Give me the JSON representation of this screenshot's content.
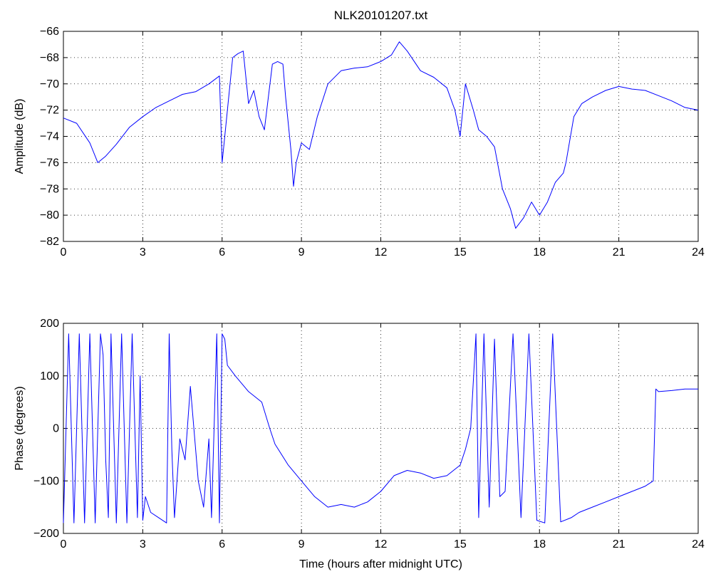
{
  "chart_data": [
    {
      "type": "line",
      "title": "NLK20101207.txt",
      "xlabel": "",
      "ylabel": "Amplitude (dB)",
      "xlim": [
        0,
        24
      ],
      "ylim": [
        -82,
        -66
      ],
      "xticks": [
        "0",
        "3",
        "6",
        "9",
        "12",
        "15",
        "18",
        "21",
        "24"
      ],
      "yticks": [
        "-66",
        "-68",
        "-70",
        "-72",
        "-74",
        "-76",
        "-78",
        "-80",
        "-82"
      ],
      "grid": true,
      "color": "#0000ff",
      "series": [
        {
          "x": [
            0,
            0.5,
            1.0,
            1.3,
            1.6,
            2.0,
            2.5,
            3.0,
            3.5,
            4.0,
            4.5,
            5.0,
            5.5,
            5.9,
            6.0,
            6.2,
            6.4,
            6.6,
            6.8,
            7.0,
            7.2,
            7.4,
            7.6,
            7.9,
            8.1,
            8.3,
            8.4,
            8.6,
            8.7,
            8.8,
            9.0,
            9.3,
            9.6,
            10.0,
            10.5,
            11.0,
            11.5,
            12.0,
            12.4,
            12.7,
            13.0,
            13.5,
            14.0,
            14.5,
            14.8,
            15.0,
            15.2,
            15.5,
            15.7,
            16.0,
            16.3,
            16.6,
            16.9,
            17.1,
            17.4,
            17.7,
            18.0,
            18.3,
            18.6,
            18.9,
            19.0,
            19.3,
            19.6,
            20.0,
            20.5,
            21.0,
            21.5,
            22.0,
            22.5,
            23.0,
            23.5,
            24.0
          ],
          "values": [
            -72.6,
            -73.0,
            -74.5,
            -76.0,
            -75.5,
            -74.6,
            -73.3,
            -72.5,
            -71.8,
            -71.3,
            -70.8,
            -70.6,
            -70.0,
            -69.4,
            -76.0,
            -72.0,
            -68.0,
            -67.7,
            -67.5,
            -71.5,
            -70.5,
            -72.5,
            -73.5,
            -68.5,
            -68.3,
            -68.5,
            -71.0,
            -75.0,
            -77.8,
            -76.0,
            -74.5,
            -75.0,
            -72.5,
            -70.0,
            -69.0,
            -68.8,
            -68.7,
            -68.3,
            -67.8,
            -66.8,
            -67.5,
            -69.0,
            -69.5,
            -70.3,
            -72.0,
            -74.0,
            -70.0,
            -72.0,
            -73.5,
            -74.0,
            -74.8,
            -78.0,
            -79.5,
            -81.0,
            -80.2,
            -79.0,
            -80.0,
            -79.0,
            -77.5,
            -76.8,
            -76.0,
            -72.5,
            -71.5,
            -71.0,
            -70.5,
            -70.2,
            -70.4,
            -70.5,
            -70.9,
            -71.3,
            -71.8,
            -72.0
          ]
        }
      ]
    },
    {
      "type": "line",
      "title": "",
      "xlabel": "Time (hours after midnight UTC)",
      "ylabel": "Phase (degrees)",
      "xlim": [
        0,
        24
      ],
      "ylim": [
        -200,
        200
      ],
      "xticks": [
        "0",
        "3",
        "6",
        "9",
        "12",
        "15",
        "18",
        "21",
        "24"
      ],
      "yticks": [
        "200",
        "100",
        "0",
        "-100",
        "-200"
      ],
      "grid": true,
      "color": "#0000ff",
      "series": [
        {
          "x": [
            0,
            0.2,
            0.4,
            0.6,
            0.8,
            1.0,
            1.2,
            1.4,
            1.5,
            1.6,
            1.7,
            1.8,
            2.0,
            2.2,
            2.4,
            2.6,
            2.8,
            2.9,
            3.0,
            3.1,
            3.3,
            3.6,
            3.9,
            4.0,
            4.1,
            4.2,
            4.4,
            4.6,
            4.8,
            5.0,
            5.1,
            5.3,
            5.5,
            5.6,
            5.8,
            5.9,
            6.0,
            6.1,
            6.2,
            6.5,
            7.0,
            7.5,
            7.8,
            8.0,
            8.5,
            9.0,
            9.5,
            10.0,
            10.5,
            11.0,
            11.5,
            12.0,
            12.5,
            13.0,
            13.5,
            14.0,
            14.5,
            15.0,
            15.2,
            15.4,
            15.6,
            15.7,
            15.9,
            16.1,
            16.3,
            16.5,
            16.7,
            17.0,
            17.3,
            17.6,
            17.9,
            18.2,
            18.5,
            18.8,
            19.2,
            19.5,
            20.0,
            20.5,
            21.0,
            21.5,
            22.0,
            22.3,
            22.4,
            22.5,
            23.0,
            23.5,
            24.0
          ],
          "values": [
            -180,
            180,
            -180,
            180,
            -180,
            180,
            -180,
            180,
            140,
            -60,
            -170,
            180,
            -180,
            180,
            -180,
            180,
            -170,
            100,
            -175,
            -130,
            -160,
            -170,
            -180,
            180,
            -40,
            -170,
            -20,
            -60,
            80,
            -40,
            -100,
            -150,
            -20,
            -170,
            180,
            -180,
            180,
            170,
            120,
            100,
            70,
            50,
            0,
            -30,
            -70,
            -100,
            -130,
            -150,
            -145,
            -150,
            -140,
            -120,
            -90,
            -80,
            -85,
            -95,
            -90,
            -70,
            -40,
            0,
            180,
            -170,
            180,
            -150,
            170,
            -130,
            -120,
            180,
            -170,
            180,
            -175,
            -180,
            180,
            -178,
            -170,
            -160,
            -150,
            -140,
            -130,
            -120,
            -110,
            -100,
            75,
            70,
            72,
            75,
            75
          ]
        }
      ]
    }
  ]
}
